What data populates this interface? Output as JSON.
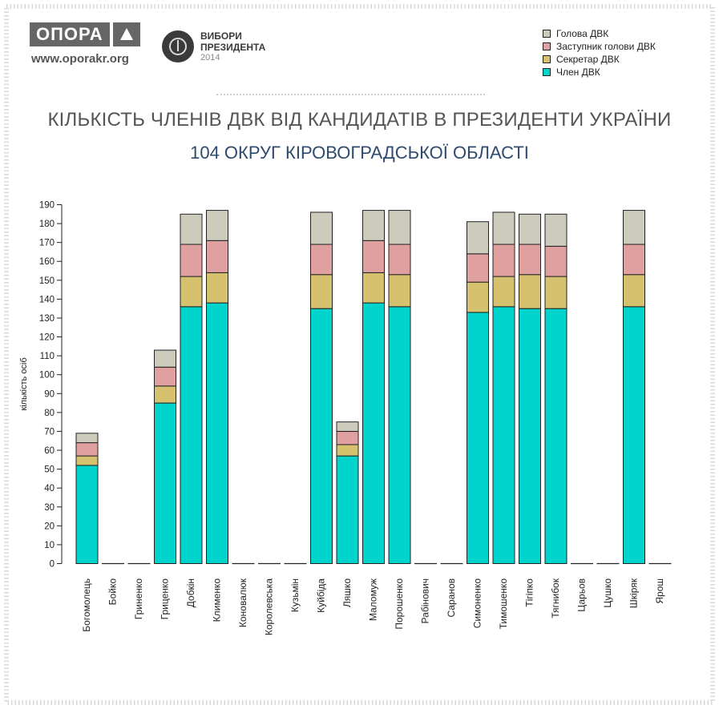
{
  "header": {
    "logo_text": "ОПОРА",
    "site": "www.oporakr.org",
    "election_line1": "ВИБОРИ",
    "election_line2": "ПРЕЗИДЕНТА",
    "election_year": "2014"
  },
  "colors": {
    "head": "#cccbbc",
    "deputy": "#e0a0a0",
    "secretary": "#d6c16e",
    "member": "#00d4cc",
    "border": "#222222"
  },
  "chart_data": {
    "type": "bar",
    "stacked": true,
    "title": "КІЛЬКІСТЬ ЧЛЕНІВ ДВК ВІД КАНДИДАТІВ В ПРЕЗИДЕНТИ УКРАЇНИ",
    "subtitle": "104 ОКРУГ КІРОВОГРАДСЬКОЇ ОБЛАСТІ",
    "ylabel": "кількість осіб",
    "xlabel": "",
    "ylim": [
      0,
      190
    ],
    "yticks": [
      0,
      10,
      20,
      30,
      40,
      50,
      60,
      70,
      80,
      90,
      100,
      110,
      120,
      130,
      140,
      150,
      160,
      170,
      180,
      190
    ],
    "legend_position": "top-right",
    "categories": [
      "Богомолець",
      "Бойко",
      "Гриненко",
      "Гриценко",
      "Добкін",
      "Клименко",
      "Коновалюк",
      "Королевська",
      "Кузьмін",
      "Куйбіда",
      "Ляшко",
      "Маломуж",
      "Порошенко",
      "Рабінович",
      "Саранов",
      "Симоненко",
      "Тимошенко",
      "Тігіпко",
      "Тягнибок",
      "Царьов",
      "Цушко",
      "Шкіряк",
      "Ярош"
    ],
    "series": [
      {
        "name": "Член ДВК",
        "color_key": "member",
        "values": [
          52,
          0,
          0,
          85,
          136,
          138,
          0,
          0,
          0,
          135,
          57,
          138,
          136,
          0,
          0,
          133,
          136,
          135,
          135,
          0,
          0,
          136,
          0
        ]
      },
      {
        "name": "Секретар ДВК",
        "color_key": "secretary",
        "values": [
          5,
          0,
          0,
          9,
          16,
          16,
          0,
          0,
          0,
          18,
          6,
          16,
          17,
          0,
          0,
          16,
          16,
          18,
          17,
          0,
          0,
          17,
          0
        ]
      },
      {
        "name": "Заступник голови ДВК",
        "color_key": "deputy",
        "values": [
          7,
          0,
          0,
          10,
          17,
          17,
          0,
          0,
          0,
          16,
          7,
          17,
          16,
          0,
          0,
          15,
          17,
          16,
          16,
          0,
          0,
          16,
          0
        ]
      },
      {
        "name": "Голова ДВК",
        "color_key": "head",
        "values": [
          5,
          0,
          0,
          9,
          16,
          16,
          0,
          0,
          0,
          17,
          5,
          16,
          18,
          0,
          0,
          17,
          17,
          16,
          17,
          0,
          0,
          18,
          0
        ]
      }
    ],
    "legend": [
      "Голова ДВК",
      "Заступник голови ДВК",
      "Секретар ДВК",
      "Член ДВК"
    ]
  }
}
